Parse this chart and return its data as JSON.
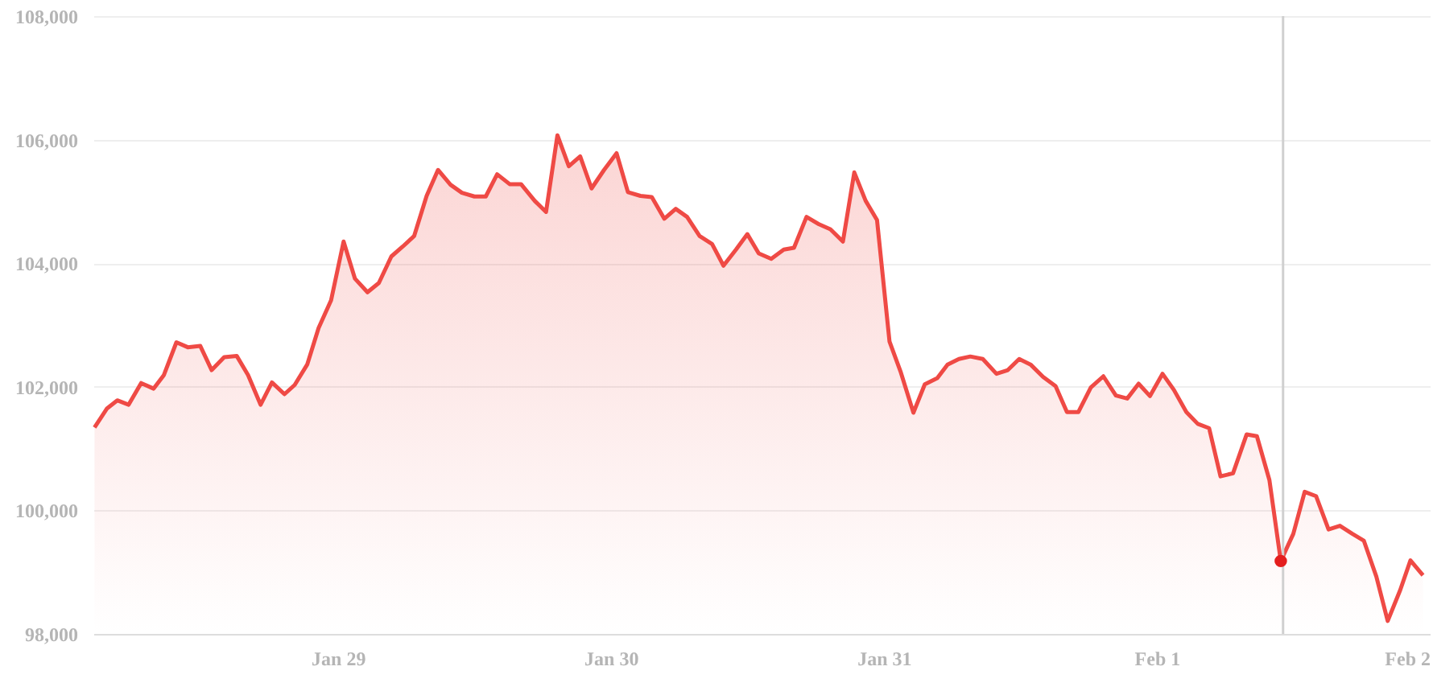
{
  "chart_data": {
    "type": "area",
    "x": [
      "--01-28T02:36",
      "--01-28T03:42",
      "--01-28T04:36",
      "--01-28T05:36",
      "--01-28T06:42",
      "--01-28T07:48",
      "--01-28T08:42",
      "--01-28T09:48",
      "--01-28T10:48",
      "--01-28T11:54",
      "--01-28T12:54",
      "--01-28T14:00",
      "--01-28T15:06",
      "--01-28T16:06",
      "--01-28T17:12",
      "--01-28T18:12",
      "--01-28T19:18",
      "--01-28T20:12",
      "--01-28T21:18",
      "--01-28T22:18",
      "--01-28T23:24",
      "--01-29T00:30",
      "--01-29T01:30",
      "--01-29T02:36",
      "--01-29T03:36",
      "--01-29T04:42",
      "--01-29T05:42",
      "--01-29T06:42",
      "--01-29T07:48",
      "--01-29T08:48",
      "--01-29T09:54",
      "--01-29T10:54",
      "--01-29T12:00",
      "--01-29T13:00",
      "--01-29T14:00",
      "--01-29T15:06",
      "--01-29T16:06",
      "--01-29T17:18",
      "--01-29T18:18",
      "--01-29T19:18",
      "--01-29T20:18",
      "--01-29T21:18",
      "--01-29T22:18",
      "--01-29T23:24",
      "--01-30T00:30",
      "--01-30T01:30",
      "--01-30T02:36",
      "--01-30T03:36",
      "--01-30T04:42",
      "--01-30T05:42",
      "--01-30T06:42",
      "--01-30T07:48",
      "--01-30T08:54",
      "--01-30T09:54",
      "--01-30T11:00",
      "--01-30T12:00",
      "--01-30T13:00",
      "--01-30T14:06",
      "--01-30T15:12",
      "--01-30T16:06",
      "--01-30T17:12",
      "--01-30T18:18",
      "--01-30T19:18",
      "--01-30T20:24",
      "--01-30T21:24",
      "--01-30T22:24",
      "--01-30T23:24",
      "--01-31T00:30",
      "--01-31T01:30",
      "--01-31T02:36",
      "--01-31T03:36",
      "--01-31T04:42",
      "--01-31T05:36",
      "--01-31T06:36",
      "--01-31T07:36",
      "--01-31T08:42",
      "--01-31T09:54",
      "--01-31T10:54",
      "--01-31T11:54",
      "--01-31T12:54",
      "--01-31T14:00",
      "--01-31T15:06",
      "--01-31T16:06",
      "--01-31T17:06",
      "--01-31T18:12",
      "--01-31T19:18",
      "--01-31T20:24",
      "--01-31T21:24",
      "--01-31T22:24",
      "--01-31T23:24",
      "--02-01T00:30",
      "--02-01T01:30",
      "--02-01T02:36",
      "--02-01T03:36",
      "--02-01T04:36",
      "--02-01T05:36",
      "--02-01T06:42",
      "--02-01T07:54",
      "--02-01T08:48",
      "--02-01T09:54",
      "--02-01T10:54",
      "--02-01T12:00",
      "--02-01T13:00",
      "--02-01T14:00",
      "--02-01T15:06",
      "--02-01T16:06",
      "--02-01T17:12",
      "--02-01T18:12",
      "--02-01T19:18",
      "--02-01T20:18",
      "--02-01T21:24",
      "--02-01T22:18",
      "--02-01T23:24"
    ],
    "series": [
      {
        "type": "area",
        "color": "#ef4a45",
        "values": [
          101340,
          101650,
          101780,
          101710,
          102060,
          101970,
          102190,
          102720,
          102640,
          102660,
          102270,
          102480,
          102500,
          102190,
          101710,
          102070,
          101880,
          102030,
          102360,
          102950,
          103400,
          104350,
          103750,
          103530,
          103680,
          104110,
          104270,
          104440,
          105090,
          105510,
          105270,
          105140,
          105080,
          105080,
          105440,
          105280,
          105280,
          105010,
          104830,
          106070,
          105570,
          105730,
          105210,
          105510,
          105780,
          105150,
          105090,
          105070,
          104720,
          104880,
          104750,
          104440,
          104310,
          103960,
          104220,
          104470,
          104160,
          104070,
          104220,
          104250,
          104750,
          104630,
          104550,
          104350,
          105470,
          105010,
          104700,
          102730,
          102230,
          101580,
          102040,
          102140,
          102360,
          102450,
          102490,
          102450,
          102210,
          102270,
          102450,
          102360,
          102160,
          102010,
          101590,
          101590,
          101990,
          102170,
          101860,
          101810,
          102050,
          101850,
          102210,
          101950,
          101590,
          101400,
          101330,
          100550,
          100600,
          101230,
          101200,
          100490,
          99180,
          99620,
          100300,
          100230,
          99690,
          99750,
          99620,
          99510,
          98930,
          98210,
          98710,
          99190,
          98950
        ]
      },
      {
        "type": "scatter",
        "color": "#e41e1e",
        "x": [
          "--02-01T10:54"
        ],
        "values": [
          99180
        ]
      }
    ],
    "xlim": [
      "--01-28T02:30",
      "--02-02T00:00"
    ],
    "xticks": [
      {
        "value": "--01-29",
        "label": "Jan 29"
      },
      {
        "value": "--01-30",
        "label": "Jan 30"
      },
      {
        "value": "--01-31",
        "label": "Jan 31"
      },
      {
        "value": "--02-01",
        "label": "Feb 1"
      },
      {
        "value": "--02-02",
        "label": "Feb 2"
      }
    ],
    "ylim": [
      98000,
      108000
    ],
    "yticks": [
      {
        "value": 98000,
        "label": "98,000"
      },
      {
        "value": 100000,
        "label": "100,000"
      },
      {
        "value": 102000,
        "label": "102,000"
      },
      {
        "value": 104000,
        "label": "104,000"
      },
      {
        "value": 106000,
        "label": "106,000"
      },
      {
        "value": 108000,
        "label": "108,000"
      }
    ],
    "grid": "y",
    "ref_lines": [
      {
        "axis": "x",
        "value": "--02-01T11:06",
        "color": "#d0d0d0"
      }
    ]
  }
}
